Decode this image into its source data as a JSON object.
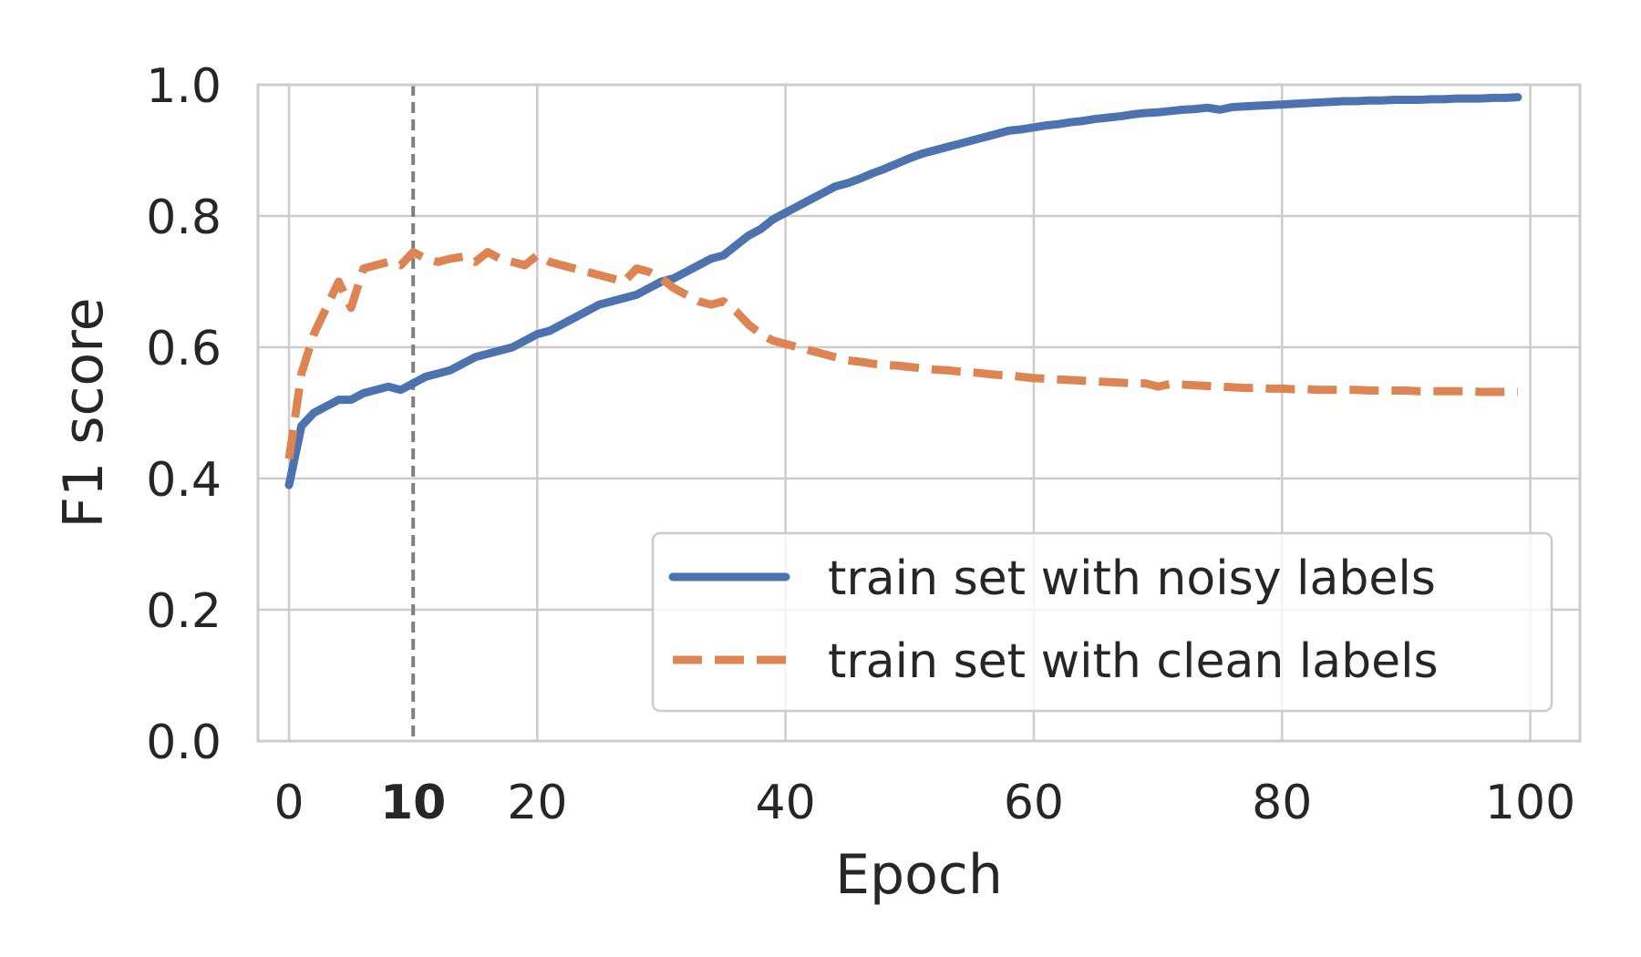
{
  "chart_data": {
    "type": "line",
    "title": "",
    "xlabel": "Epoch",
    "ylabel": "F1 score",
    "xlim": [
      -2.5,
      104
    ],
    "ylim": [
      0.0,
      1.0
    ],
    "xticks": [
      {
        "value": 0,
        "label": "0",
        "bold": false
      },
      {
        "value": 10,
        "label": "10",
        "bold": true
      },
      {
        "value": 20,
        "label": "20",
        "bold": false
      },
      {
        "value": 40,
        "label": "40",
        "bold": false
      },
      {
        "value": 60,
        "label": "60",
        "bold": false
      },
      {
        "value": 80,
        "label": "80",
        "bold": false
      },
      {
        "value": 100,
        "label": "100",
        "bold": false
      }
    ],
    "yticks": [
      {
        "value": 0.0,
        "label": "0.0"
      },
      {
        "value": 0.2,
        "label": "0.2"
      },
      {
        "value": 0.4,
        "label": "0.4"
      },
      {
        "value": 0.6,
        "label": "0.6"
      },
      {
        "value": 0.8,
        "label": "0.8"
      },
      {
        "value": 1.0,
        "label": "1.0"
      }
    ],
    "grid": true,
    "vline": {
      "x": 10,
      "color": "#808080",
      "style": "dashed"
    },
    "legend": {
      "position": "bottom-right"
    },
    "series": [
      {
        "name": "train set with noisy labels",
        "color": "#4c72b0",
        "dash": "solid",
        "x": [
          0,
          1,
          2,
          3,
          4,
          5,
          6,
          7,
          8,
          9,
          10,
          11,
          12,
          13,
          14,
          15,
          16,
          17,
          18,
          19,
          20,
          21,
          22,
          23,
          24,
          25,
          26,
          27,
          28,
          29,
          30,
          31,
          32,
          33,
          34,
          35,
          36,
          37,
          38,
          39,
          40,
          41,
          42,
          43,
          44,
          45,
          46,
          47,
          48,
          49,
          50,
          51,
          52,
          53,
          54,
          55,
          56,
          57,
          58,
          59,
          60,
          61,
          62,
          63,
          64,
          65,
          66,
          67,
          68,
          69,
          70,
          71,
          72,
          73,
          74,
          75,
          76,
          77,
          78,
          79,
          80,
          81,
          82,
          83,
          84,
          85,
          86,
          87,
          88,
          89,
          90,
          91,
          92,
          93,
          94,
          95,
          96,
          97,
          98,
          99
        ],
        "y": [
          0.39,
          0.48,
          0.5,
          0.51,
          0.52,
          0.52,
          0.53,
          0.535,
          0.54,
          0.535,
          0.545,
          0.555,
          0.56,
          0.565,
          0.575,
          0.585,
          0.59,
          0.595,
          0.6,
          0.61,
          0.62,
          0.625,
          0.635,
          0.645,
          0.655,
          0.665,
          0.67,
          0.675,
          0.68,
          0.69,
          0.7,
          0.705,
          0.715,
          0.725,
          0.735,
          0.74,
          0.755,
          0.77,
          0.78,
          0.795,
          0.805,
          0.815,
          0.825,
          0.835,
          0.845,
          0.85,
          0.857,
          0.865,
          0.872,
          0.88,
          0.888,
          0.895,
          0.9,
          0.905,
          0.91,
          0.915,
          0.92,
          0.925,
          0.93,
          0.932,
          0.935,
          0.938,
          0.94,
          0.943,
          0.945,
          0.948,
          0.95,
          0.952,
          0.955,
          0.957,
          0.958,
          0.96,
          0.962,
          0.963,
          0.965,
          0.962,
          0.966,
          0.967,
          0.968,
          0.969,
          0.97,
          0.971,
          0.972,
          0.973,
          0.974,
          0.975,
          0.975,
          0.976,
          0.976,
          0.977,
          0.977,
          0.977,
          0.978,
          0.978,
          0.979,
          0.979,
          0.979,
          0.98,
          0.98,
          0.981
        ]
      },
      {
        "name": "train set with clean labels",
        "color": "#dd8452",
        "dash": "dashed",
        "x": [
          0,
          1,
          2,
          3,
          4,
          5,
          6,
          7,
          8,
          9,
          10,
          11,
          12,
          13,
          14,
          15,
          16,
          17,
          18,
          19,
          20,
          21,
          22,
          23,
          24,
          25,
          26,
          27,
          28,
          29,
          30,
          31,
          32,
          33,
          34,
          35,
          36,
          37,
          38,
          39,
          40,
          41,
          42,
          43,
          44,
          45,
          46,
          47,
          48,
          49,
          50,
          51,
          52,
          53,
          54,
          55,
          56,
          57,
          58,
          59,
          60,
          61,
          62,
          63,
          64,
          65,
          66,
          67,
          68,
          69,
          70,
          71,
          72,
          73,
          74,
          75,
          76,
          77,
          78,
          79,
          80,
          81,
          82,
          83,
          84,
          85,
          86,
          87,
          88,
          89,
          90,
          91,
          92,
          93,
          94,
          95,
          96,
          97,
          98,
          99
        ],
        "y": [
          0.43,
          0.56,
          0.62,
          0.66,
          0.7,
          0.66,
          0.72,
          0.725,
          0.73,
          0.725,
          0.745,
          0.735,
          0.73,
          0.735,
          0.738,
          0.73,
          0.745,
          0.735,
          0.73,
          0.725,
          0.74,
          0.73,
          0.725,
          0.72,
          0.715,
          0.71,
          0.705,
          0.7,
          0.72,
          0.715,
          0.705,
          0.69,
          0.68,
          0.67,
          0.665,
          0.67,
          0.655,
          0.635,
          0.62,
          0.61,
          0.605,
          0.6,
          0.595,
          0.59,
          0.585,
          0.58,
          0.578,
          0.575,
          0.573,
          0.572,
          0.57,
          0.568,
          0.566,
          0.565,
          0.563,
          0.562,
          0.56,
          0.558,
          0.557,
          0.555,
          0.553,
          0.552,
          0.551,
          0.55,
          0.549,
          0.548,
          0.547,
          0.546,
          0.545,
          0.545,
          0.54,
          0.544,
          0.543,
          0.542,
          0.541,
          0.54,
          0.539,
          0.538,
          0.538,
          0.537,
          0.537,
          0.536,
          0.536,
          0.535,
          0.535,
          0.535,
          0.535,
          0.534,
          0.534,
          0.534,
          0.534,
          0.533,
          0.533,
          0.533,
          0.533,
          0.533,
          0.532,
          0.532,
          0.532,
          0.532
        ]
      }
    ]
  }
}
